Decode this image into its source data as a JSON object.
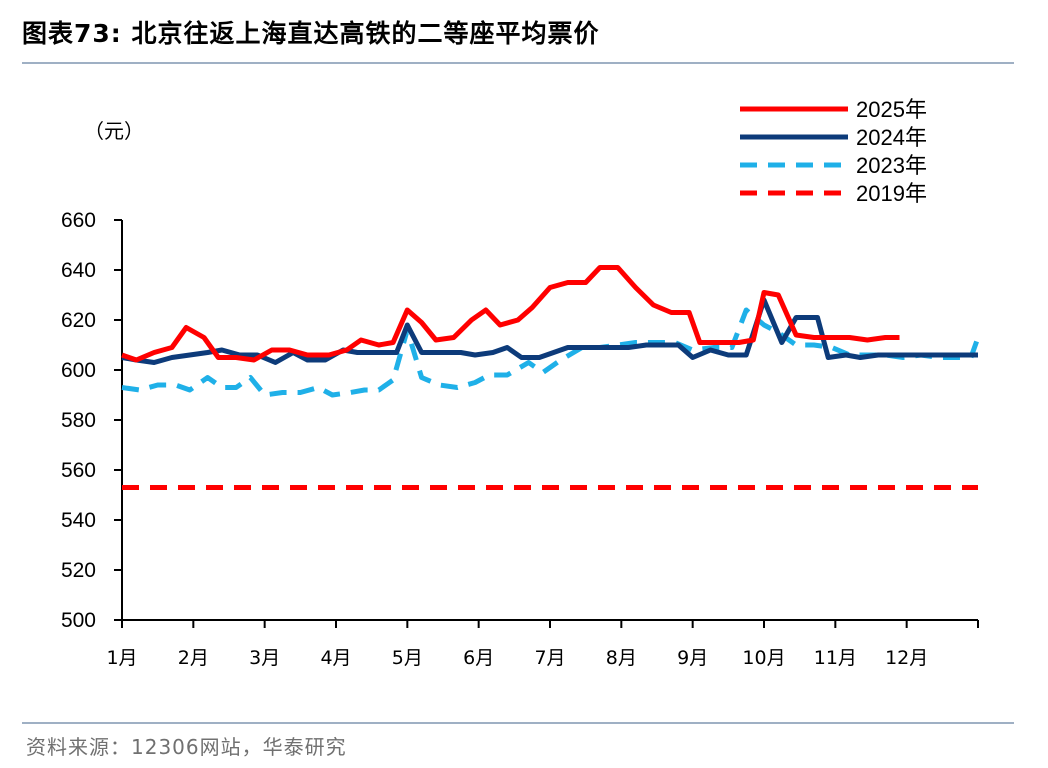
{
  "header": {
    "title": "图表73:  北京往返上海直达高铁的二等座平均票价"
  },
  "footer": {
    "source": "资料来源：12306网站，华泰研究"
  },
  "chart_data": {
    "type": "line",
    "title": "北京往返上海直达高铁的二等座平均票价",
    "ylabel": "（元）",
    "ylim": [
      500,
      660
    ],
    "yticks": [
      500,
      520,
      540,
      560,
      580,
      600,
      620,
      640,
      660
    ],
    "xlim": [
      1,
      13
    ],
    "xtick_labels": [
      "1月",
      "2月",
      "3月",
      "4月",
      "5月",
      "6月",
      "7月",
      "8月",
      "9月",
      "10月",
      "11月",
      "12月"
    ],
    "legend_position": "top-right",
    "series": [
      {
        "name": "2025年",
        "color": "#ff0000",
        "style": "solid",
        "points": [
          [
            1.0,
            606
          ],
          [
            1.2,
            604
          ],
          [
            1.45,
            607
          ],
          [
            1.7,
            609
          ],
          [
            1.9,
            617
          ],
          [
            2.15,
            613
          ],
          [
            2.35,
            605
          ],
          [
            2.6,
            605
          ],
          [
            2.85,
            604
          ],
          [
            3.1,
            608
          ],
          [
            3.35,
            608
          ],
          [
            3.6,
            606
          ],
          [
            3.9,
            606
          ],
          [
            4.15,
            608
          ],
          [
            4.35,
            612
          ],
          [
            4.6,
            610
          ],
          [
            4.8,
            611
          ],
          [
            5.0,
            624
          ],
          [
            5.2,
            619
          ],
          [
            5.4,
            612
          ],
          [
            5.65,
            613
          ],
          [
            5.9,
            620
          ],
          [
            6.1,
            624
          ],
          [
            6.3,
            618
          ],
          [
            6.55,
            620
          ],
          [
            6.75,
            625
          ],
          [
            7.0,
            633
          ],
          [
            7.25,
            635
          ],
          [
            7.5,
            635
          ],
          [
            7.7,
            641
          ],
          [
            7.95,
            641
          ],
          [
            8.2,
            633
          ],
          [
            8.45,
            626
          ],
          [
            8.7,
            623
          ],
          [
            8.95,
            623
          ],
          [
            9.1,
            611
          ],
          [
            9.4,
            611
          ],
          [
            9.65,
            611
          ],
          [
            9.85,
            612
          ],
          [
            10.0,
            631
          ],
          [
            10.2,
            630
          ],
          [
            10.45,
            614
          ],
          [
            10.7,
            613
          ],
          [
            10.95,
            613
          ],
          [
            11.2,
            613
          ],
          [
            11.45,
            612
          ],
          [
            11.7,
            613
          ],
          [
            11.9,
            613
          ]
        ]
      },
      {
        "name": "2024年",
        "color": "#0d3b7a",
        "style": "solid",
        "points": [
          [
            1.0,
            605
          ],
          [
            1.2,
            604
          ],
          [
            1.45,
            603
          ],
          [
            1.7,
            605
          ],
          [
            1.95,
            606
          ],
          [
            2.2,
            607
          ],
          [
            2.4,
            608
          ],
          [
            2.65,
            606
          ],
          [
            2.9,
            606
          ],
          [
            3.15,
            603
          ],
          [
            3.4,
            607
          ],
          [
            3.6,
            604
          ],
          [
            3.85,
            604
          ],
          [
            4.1,
            608
          ],
          [
            4.3,
            607
          ],
          [
            4.6,
            607
          ],
          [
            4.85,
            607
          ],
          [
            5.0,
            618
          ],
          [
            5.2,
            607
          ],
          [
            5.5,
            607
          ],
          [
            5.75,
            607
          ],
          [
            5.95,
            606
          ],
          [
            6.2,
            607
          ],
          [
            6.4,
            609
          ],
          [
            6.6,
            605
          ],
          [
            6.85,
            605
          ],
          [
            7.05,
            607
          ],
          [
            7.25,
            609
          ],
          [
            7.55,
            609
          ],
          [
            7.8,
            609
          ],
          [
            8.1,
            609
          ],
          [
            8.35,
            610
          ],
          [
            8.6,
            610
          ],
          [
            8.8,
            610
          ],
          [
            9.0,
            605
          ],
          [
            9.25,
            608
          ],
          [
            9.5,
            606
          ],
          [
            9.75,
            606
          ],
          [
            10.0,
            628
          ],
          [
            10.25,
            611
          ],
          [
            10.45,
            621
          ],
          [
            10.75,
            621
          ],
          [
            10.9,
            605
          ],
          [
            11.15,
            606
          ],
          [
            11.35,
            605
          ],
          [
            11.6,
            606
          ],
          [
            11.85,
            606
          ],
          [
            12.1,
            606
          ],
          [
            12.4,
            606
          ],
          [
            12.7,
            606
          ],
          [
            13.0,
            606
          ]
        ]
      },
      {
        "name": "2023年",
        "color": "#1fb0e8",
        "style": "dashed",
        "points": [
          [
            1.0,
            593
          ],
          [
            1.25,
            592
          ],
          [
            1.5,
            594
          ],
          [
            1.75,
            594
          ],
          [
            1.95,
            592
          ],
          [
            2.2,
            597
          ],
          [
            2.4,
            593
          ],
          [
            2.6,
            593
          ],
          [
            2.8,
            597
          ],
          [
            3.0,
            590
          ],
          [
            3.25,
            591
          ],
          [
            3.5,
            591
          ],
          [
            3.75,
            593
          ],
          [
            3.95,
            590
          ],
          [
            4.2,
            591
          ],
          [
            4.4,
            592
          ],
          [
            4.6,
            592
          ],
          [
            4.8,
            596
          ],
          [
            5.0,
            616
          ],
          [
            5.2,
            597
          ],
          [
            5.45,
            594
          ],
          [
            5.7,
            593
          ],
          [
            5.95,
            595
          ],
          [
            6.15,
            598
          ],
          [
            6.4,
            598
          ],
          [
            6.7,
            603
          ],
          [
            6.9,
            599
          ],
          [
            7.15,
            604
          ],
          [
            7.45,
            609
          ],
          [
            7.7,
            609
          ],
          [
            7.95,
            610
          ],
          [
            8.2,
            611
          ],
          [
            8.5,
            611
          ],
          [
            8.75,
            611
          ],
          [
            9.0,
            608
          ],
          [
            9.3,
            609
          ],
          [
            9.55,
            609
          ],
          [
            9.75,
            624
          ],
          [
            10.0,
            618
          ],
          [
            10.2,
            615
          ],
          [
            10.45,
            610
          ],
          [
            10.7,
            610
          ],
          [
            10.95,
            609
          ],
          [
            11.2,
            606
          ],
          [
            11.45,
            606
          ],
          [
            11.7,
            606
          ],
          [
            11.95,
            605
          ],
          [
            12.2,
            606
          ],
          [
            12.45,
            605
          ],
          [
            12.7,
            605
          ],
          [
            12.9,
            605
          ],
          [
            13.0,
            613
          ]
        ]
      },
      {
        "name": "2019年",
        "color": "#ff0000",
        "style": "dashed",
        "points": [
          [
            1.0,
            553
          ],
          [
            13.0,
            553
          ]
        ]
      }
    ]
  }
}
